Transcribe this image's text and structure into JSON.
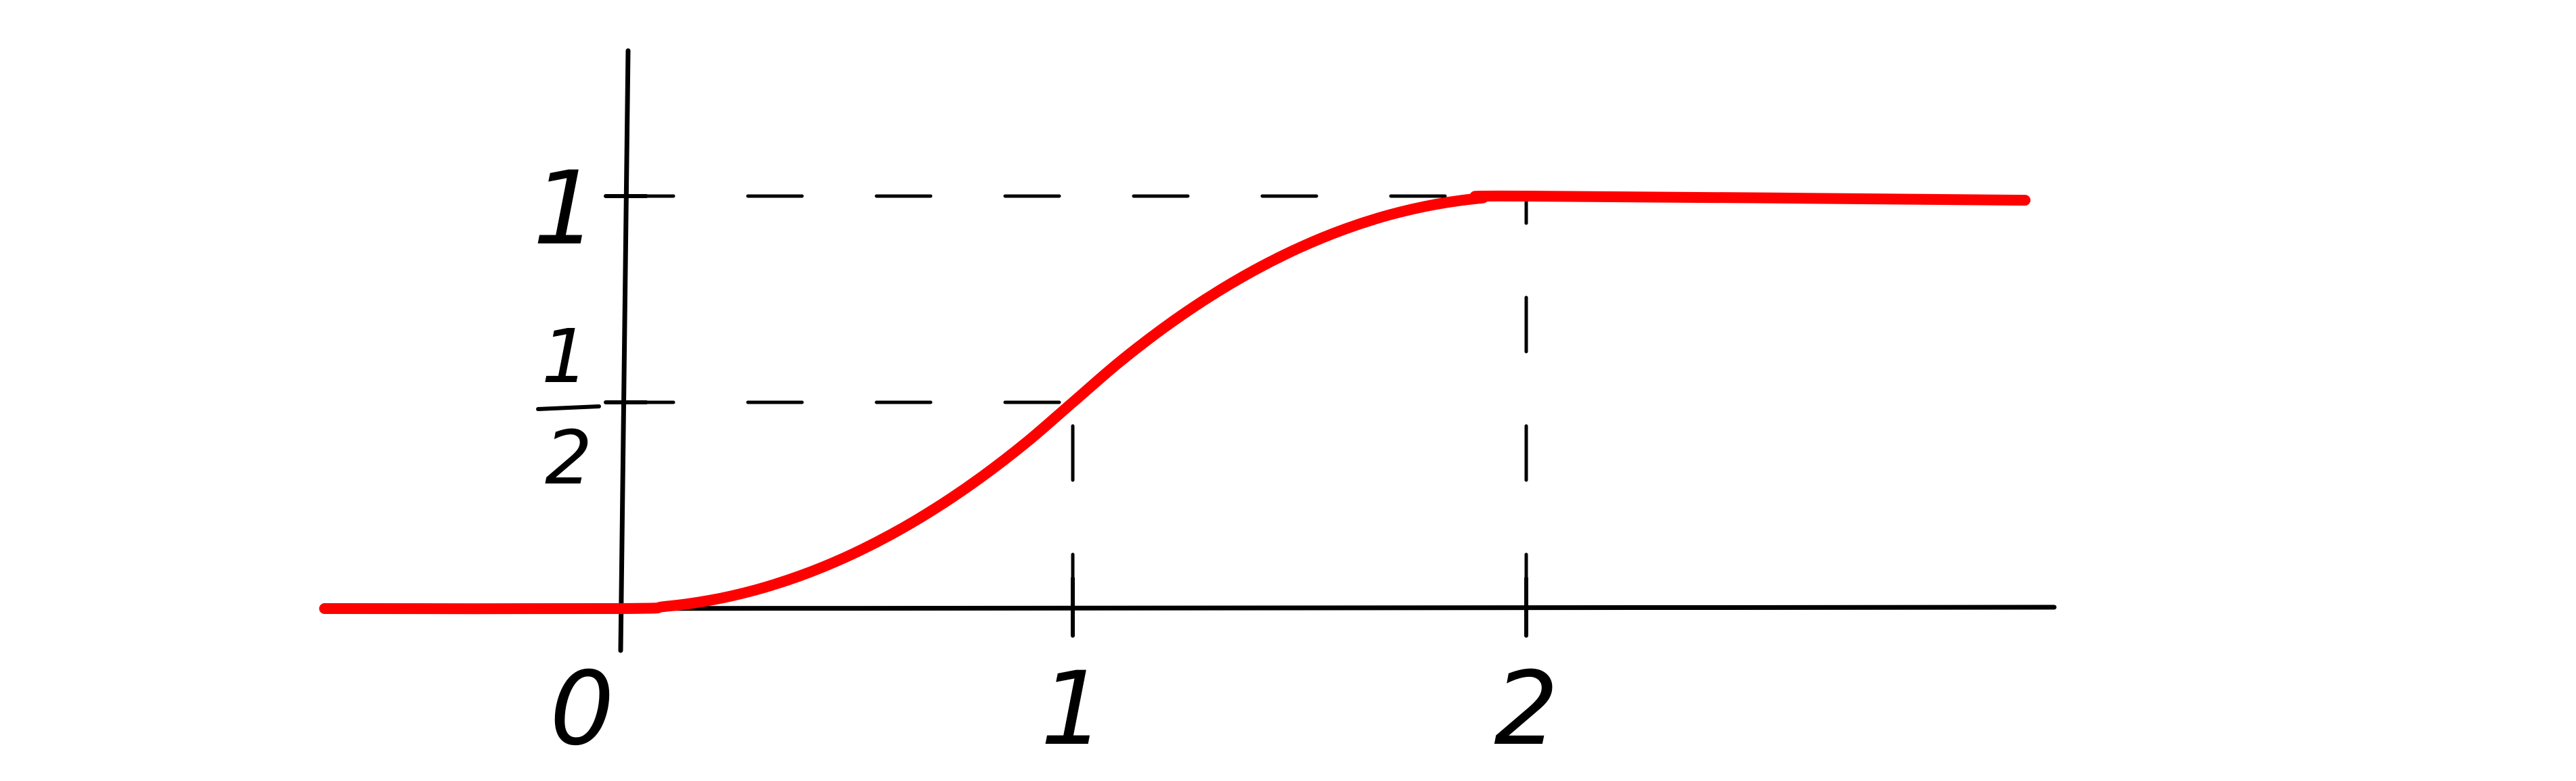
{
  "chart_data": {
    "type": "line",
    "title": "",
    "xlabel": "",
    "ylabel": "",
    "xlim": [
      -0.65,
      3.2
    ],
    "ylim": [
      0,
      1
    ],
    "grid": false,
    "x_ticks": [
      {
        "value": 0,
        "label": "0"
      },
      {
        "value": 1,
        "label": "1"
      },
      {
        "value": 2,
        "label": "2"
      }
    ],
    "y_ticks": [
      {
        "value": 0.5,
        "numerator": "1",
        "denominator": "2"
      },
      {
        "value": 1,
        "label": "1"
      }
    ],
    "reference_lines": [
      {
        "from": [
          0,
          1
        ],
        "to": [
          2,
          1
        ]
      },
      {
        "from": [
          0,
          0.5
        ],
        "to": [
          1,
          0.5
        ]
      },
      {
        "from": [
          1,
          0
        ],
        "to": [
          1,
          0.5
        ]
      },
      {
        "from": [
          2,
          0
        ],
        "to": [
          2,
          1
        ]
      }
    ],
    "series": [
      {
        "color": "#ff0000",
        "x": [
          -0.65,
          0,
          0.1,
          0.2,
          0.3,
          0.4,
          0.5,
          0.6,
          0.7,
          0.8,
          0.9,
          1.0,
          1.1,
          1.2,
          1.3,
          1.4,
          1.5,
          1.6,
          1.7,
          1.8,
          1.9,
          2.0,
          3.1
        ],
        "values": [
          0,
          0,
          0.005,
          0.02,
          0.045,
          0.08,
          0.125,
          0.18,
          0.245,
          0.32,
          0.405,
          0.5,
          0.595,
          0.68,
          0.755,
          0.82,
          0.875,
          0.92,
          0.955,
          0.98,
          0.995,
          1.0,
          0.99
        ]
      }
    ]
  }
}
